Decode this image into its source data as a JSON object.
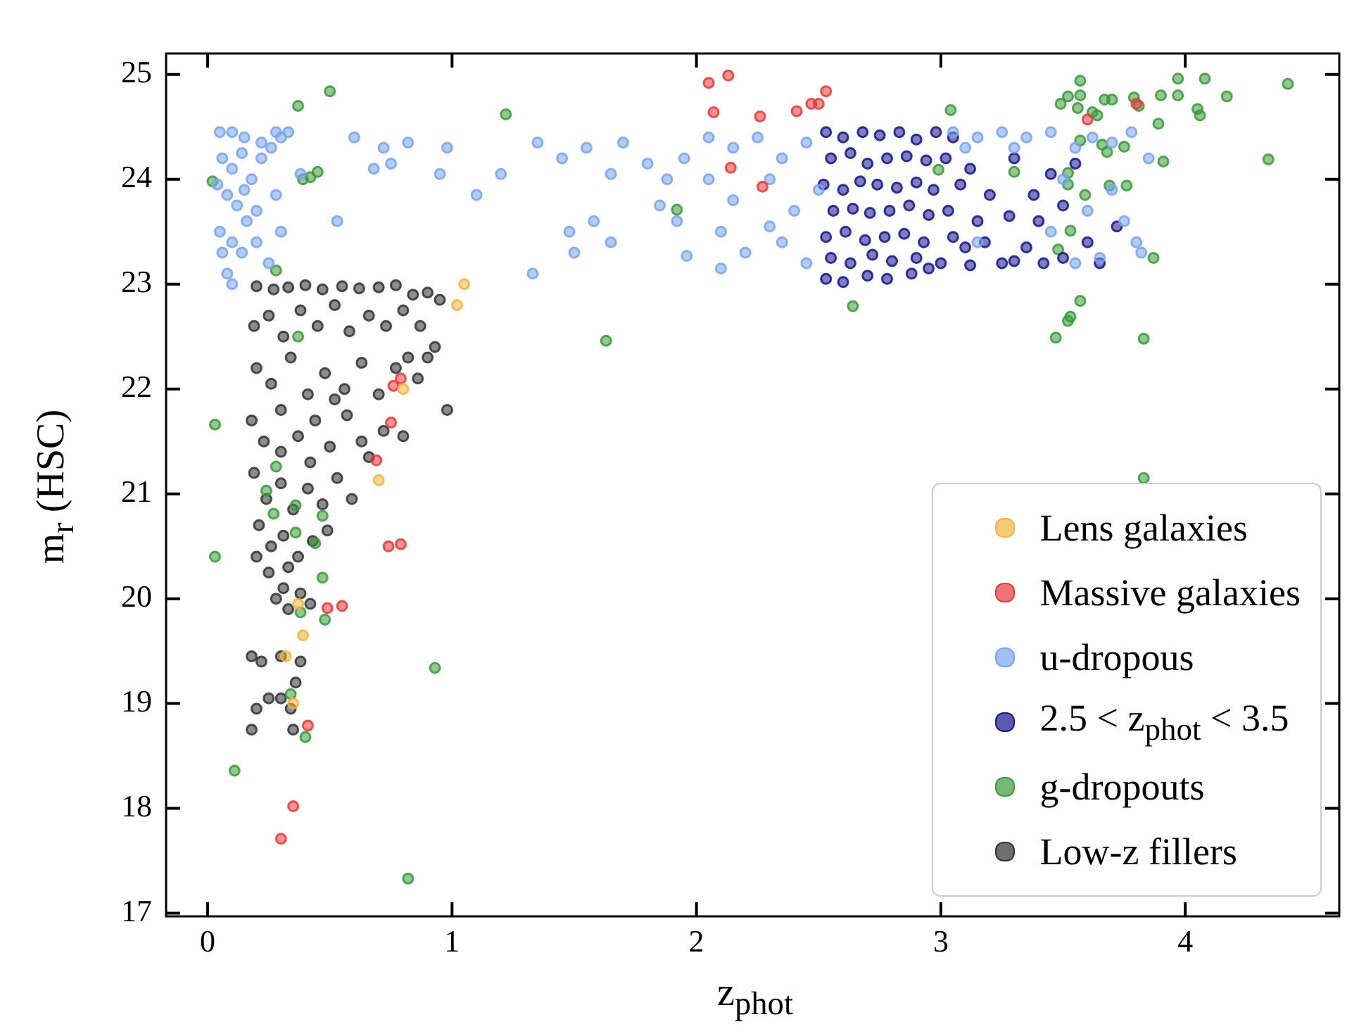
{
  "chart_data": {
    "type": "scatter",
    "xlabel": "z$_{phot}$",
    "ylabel": "m$_{r}$ (HSC)",
    "xlim": [
      -0.17,
      4.63
    ],
    "ylim": [
      16.97,
      25.2
    ],
    "xticks": [
      0,
      1,
      2,
      3,
      4
    ],
    "yticks": [
      17,
      18,
      19,
      20,
      21,
      22,
      23,
      24,
      25
    ],
    "grid": false,
    "legend": "bottom right",
    "marker": "circle",
    "series": [
      {
        "name": "Lens galaxies",
        "color": "#f5b43c",
        "x": [
          1.05,
          1.02,
          0.8,
          0.7,
          0.37,
          0.39,
          0.32,
          0.35
        ],
        "values": [
          23.0,
          22.8,
          22.0,
          21.13,
          19.95,
          19.65,
          19.45,
          19.0
        ]
      },
      {
        "name": "Massive galaxies",
        "color": "#e8383a",
        "x": [
          2.05,
          2.13,
          2.07,
          2.26,
          2.41,
          2.47,
          2.5,
          2.53,
          2.14,
          2.27,
          3.6,
          3.8,
          0.76,
          0.79,
          0.75,
          0.69,
          0.74,
          0.79,
          0.49,
          0.55,
          0.41,
          0.35,
          0.3
        ],
        "values": [
          24.92,
          24.99,
          24.64,
          24.6,
          24.65,
          24.72,
          24.72,
          24.84,
          24.11,
          23.93,
          24.57,
          24.72,
          22.03,
          22.1,
          21.68,
          21.32,
          20.5,
          20.52,
          19.91,
          19.93,
          18.79,
          18.02,
          17.71
        ]
      },
      {
        "name": "u-dropous",
        "color": "#78a4ec",
        "x": [
          0.05,
          0.1,
          0.15,
          0.22,
          0.28,
          0.3,
          0.06,
          0.1,
          0.14,
          0.18,
          0.22,
          0.26,
          0.04,
          0.08,
          0.12,
          0.16,
          0.2,
          0.28,
          0.05,
          0.1,
          0.14,
          0.2,
          0.25,
          0.08,
          0.1,
          0.06,
          0.15,
          0.3,
          0.33,
          0.38,
          0.53,
          0.6,
          0.68,
          0.72,
          0.75,
          0.82,
          0.95,
          0.98,
          1.1,
          1.2,
          1.35,
          1.45,
          1.55,
          1.65,
          1.7,
          1.8,
          1.33,
          1.48,
          1.5,
          1.58,
          1.65,
          1.88,
          1.95,
          1.92,
          1.96,
          1.85,
          2.05,
          2.15,
          2.25,
          2.35,
          2.45,
          2.05,
          2.15,
          2.3,
          2.4,
          2.1,
          2.2,
          2.35,
          2.45,
          2.1,
          2.3,
          2.5,
          3.05,
          3.15,
          3.25,
          3.35,
          3.45,
          3.55,
          3.62,
          3.7,
          3.78,
          3.85,
          3.1,
          3.3,
          3.5,
          3.6,
          3.7,
          3.75,
          3.8,
          3.15,
          3.45,
          3.55,
          3.65,
          3.82
        ],
        "values": [
          24.45,
          24.45,
          24.4,
          24.35,
          24.45,
          24.4,
          24.2,
          24.1,
          24.25,
          24.0,
          24.2,
          24.3,
          23.95,
          23.85,
          23.75,
          23.6,
          23.7,
          23.85,
          23.5,
          23.4,
          23.3,
          23.4,
          23.2,
          23.1,
          23.0,
          23.3,
          23.9,
          23.5,
          24.45,
          24.05,
          23.6,
          24.4,
          24.1,
          24.3,
          24.15,
          24.35,
          24.05,
          24.3,
          23.85,
          24.05,
          24.35,
          24.2,
          24.3,
          24.05,
          24.35,
          24.15,
          23.1,
          23.5,
          23.3,
          23.6,
          23.4,
          24.0,
          24.2,
          23.6,
          23.27,
          23.75,
          24.4,
          24.3,
          24.4,
          24.2,
          24.35,
          24.0,
          23.8,
          24.0,
          23.7,
          23.5,
          23.3,
          23.4,
          23.2,
          23.15,
          23.55,
          23.9,
          24.45,
          24.4,
          24.45,
          24.4,
          24.45,
          24.3,
          24.4,
          24.35,
          24.45,
          24.2,
          24.3,
          24.3,
          24.0,
          23.7,
          23.9,
          23.6,
          23.4,
          23.4,
          23.5,
          23.2,
          23.25,
          23.3
        ]
      },
      {
        "name": "2.5 < z$_{phot}$ < 3.5",
        "color": "#14148c",
        "x": [
          2.53,
          2.6,
          2.68,
          2.75,
          2.83,
          2.9,
          2.98,
          3.05,
          2.55,
          2.63,
          2.7,
          2.78,
          2.86,
          2.94,
          3.02,
          3.12,
          2.52,
          2.6,
          2.67,
          2.74,
          2.82,
          2.9,
          2.97,
          3.08,
          3.2,
          2.56,
          2.64,
          2.71,
          2.79,
          2.87,
          2.95,
          3.03,
          3.15,
          3.28,
          2.53,
          2.61,
          2.69,
          2.77,
          2.85,
          2.93,
          3.05,
          3.18,
          3.35,
          2.55,
          2.63,
          2.72,
          2.8,
          2.9,
          3.0,
          3.12,
          3.3,
          3.5,
          2.53,
          2.6,
          2.7,
          2.78,
          2.88,
          3.3,
          3.45,
          3.55,
          3.38,
          3.5,
          3.4,
          3.6,
          3.65,
          3.25,
          3.42,
          3.72,
          3.1,
          2.95
        ],
        "values": [
          24.45,
          24.4,
          24.45,
          24.42,
          24.45,
          24.38,
          24.45,
          24.4,
          24.2,
          24.25,
          24.15,
          24.2,
          24.22,
          24.18,
          24.2,
          24.1,
          23.95,
          23.9,
          23.98,
          23.95,
          23.92,
          23.97,
          23.9,
          23.95,
          23.85,
          23.7,
          23.72,
          23.68,
          23.7,
          23.75,
          23.66,
          23.7,
          23.6,
          23.65,
          23.45,
          23.5,
          23.42,
          23.45,
          23.48,
          23.4,
          23.45,
          23.4,
          23.35,
          23.25,
          23.2,
          23.28,
          23.22,
          23.25,
          23.2,
          23.18,
          23.22,
          23.25,
          23.05,
          23.02,
          23.08,
          23.05,
          23.1,
          24.2,
          24.05,
          24.15,
          23.85,
          23.75,
          23.6,
          23.4,
          23.2,
          23.2,
          23.2,
          23.55,
          23.35,
          23.15
        ]
      },
      {
        "name": "g-dropouts",
        "color": "#3a9a3a",
        "x": [
          0.37,
          0.5,
          0.02,
          0.39,
          0.42,
          0.45,
          1.22,
          0.28,
          1.63,
          1.92,
          0.03,
          0.37,
          0.28,
          0.24,
          0.27,
          0.36,
          0.47,
          0.36,
          0.44,
          0.03,
          0.47,
          0.38,
          0.48,
          0.93,
          0.34,
          0.4,
          0.11,
          0.82,
          3.04,
          2.99,
          3.3,
          2.64,
          3.57,
          3.49,
          3.52,
          3.57,
          3.56,
          3.62,
          3.64,
          3.67,
          3.7,
          3.79,
          3.81,
          3.9,
          3.97,
          3.97,
          4.08,
          4.05,
          4.06,
          4.17,
          4.42,
          4.34,
          3.89,
          3.91,
          3.57,
          3.66,
          3.68,
          3.75,
          3.52,
          3.52,
          3.59,
          3.69,
          3.76,
          3.53,
          3.48,
          3.87,
          3.57,
          3.53,
          3.52,
          3.47,
          3.83,
          3.83
        ],
        "values": [
          24.7,
          24.84,
          23.98,
          24.0,
          24.02,
          24.07,
          24.62,
          23.13,
          22.46,
          23.71,
          21.66,
          22.5,
          21.26,
          21.03,
          20.81,
          20.89,
          20.79,
          20.63,
          20.53,
          20.4,
          20.2,
          19.87,
          19.8,
          19.34,
          19.09,
          18.68,
          18.36,
          17.33,
          24.66,
          24.09,
          24.07,
          22.79,
          24.94,
          24.72,
          24.79,
          24.8,
          24.68,
          24.64,
          24.61,
          24.76,
          24.76,
          24.78,
          24.7,
          24.8,
          24.96,
          24.8,
          24.96,
          24.67,
          24.61,
          24.79,
          24.91,
          24.19,
          24.53,
          24.17,
          24.37,
          24.33,
          24.26,
          24.31,
          24.06,
          23.95,
          23.85,
          23.94,
          23.94,
          23.51,
          23.33,
          23.25,
          22.84,
          22.69,
          22.65,
          22.49,
          22.48,
          21.15
        ]
      },
      {
        "name": "Low-z fillers",
        "color": "#303030",
        "x": [
          0.2,
          0.27,
          0.33,
          0.4,
          0.47,
          0.55,
          0.62,
          0.7,
          0.77,
          0.84,
          0.9,
          0.95,
          0.19,
          0.25,
          0.31,
          0.38,
          0.45,
          0.52,
          0.58,
          0.66,
          0.73,
          0.8,
          0.87,
          0.93,
          0.82,
          0.2,
          0.26,
          0.34,
          0.41,
          0.48,
          0.56,
          0.63,
          0.7,
          0.77,
          0.86,
          0.98,
          0.9,
          0.18,
          0.23,
          0.3,
          0.37,
          0.44,
          0.5,
          0.57,
          0.63,
          0.72,
          0.66,
          0.52,
          0.8,
          0.19,
          0.24,
          0.3,
          0.35,
          0.41,
          0.47,
          0.53,
          0.59,
          0.42,
          0.3,
          0.21,
          0.26,
          0.31,
          0.37,
          0.43,
          0.49,
          0.2,
          0.25,
          0.33,
          0.28,
          0.33,
          0.38,
          0.31,
          0.42,
          0.18,
          0.22,
          0.3,
          0.38,
          0.36,
          0.25,
          0.3,
          0.34,
          0.2,
          0.18,
          0.35
        ],
        "values": [
          22.98,
          22.95,
          22.97,
          22.99,
          22.95,
          22.98,
          22.96,
          22.97,
          22.99,
          22.9,
          22.92,
          22.85,
          22.6,
          22.7,
          22.5,
          22.75,
          22.6,
          22.8,
          22.55,
          22.7,
          22.6,
          22.75,
          22.6,
          22.4,
          22.3,
          22.2,
          22.05,
          22.3,
          21.95,
          22.15,
          22.0,
          22.25,
          21.95,
          22.2,
          22.1,
          21.8,
          22.3,
          21.7,
          21.5,
          21.8,
          21.55,
          21.7,
          21.45,
          21.75,
          21.5,
          21.6,
          21.35,
          21.9,
          21.55,
          21.2,
          20.95,
          21.1,
          20.85,
          21.05,
          20.9,
          21.15,
          20.95,
          21.3,
          21.4,
          20.7,
          20.5,
          20.6,
          20.4,
          20.55,
          20.65,
          20.4,
          20.25,
          20.3,
          20.0,
          19.9,
          20.05,
          20.1,
          19.95,
          19.45,
          19.4,
          19.45,
          19.4,
          19.2,
          19.05,
          19.05,
          18.95,
          18.95,
          18.75,
          18.75
        ]
      }
    ]
  }
}
